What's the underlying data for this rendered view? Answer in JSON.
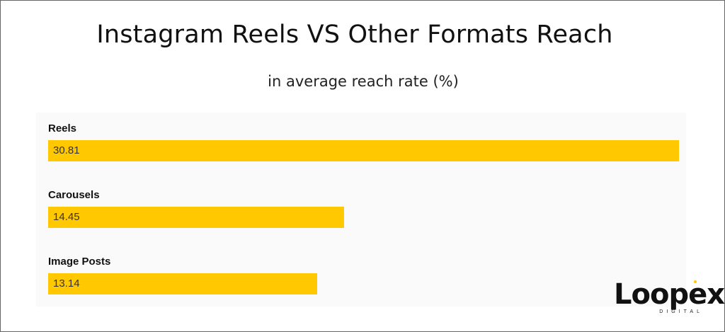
{
  "header": {
    "title": "Instagram Reels VS Other Formats Reach",
    "subtitle": "in average reach rate (%)"
  },
  "logo": {
    "wordmark": "Loopex",
    "tagline": "DIGITAL"
  },
  "colors": {
    "bar": "#ffc800",
    "plot_background": "#fafafa",
    "text": "#111111"
  },
  "chart_data": {
    "type": "bar",
    "orientation": "horizontal",
    "title": "Instagram Reels VS Other Formats Reach",
    "subtitle": "in average reach rate (%)",
    "categories": [
      "Reels",
      "Carousels",
      "Image Posts"
    ],
    "values": [
      30.81,
      14.45,
      13.14
    ],
    "data_labels": [
      "30.81",
      "14.45",
      "13.14"
    ],
    "xlim": [
      0,
      30.81
    ],
    "grid": false,
    "legend": "none"
  }
}
